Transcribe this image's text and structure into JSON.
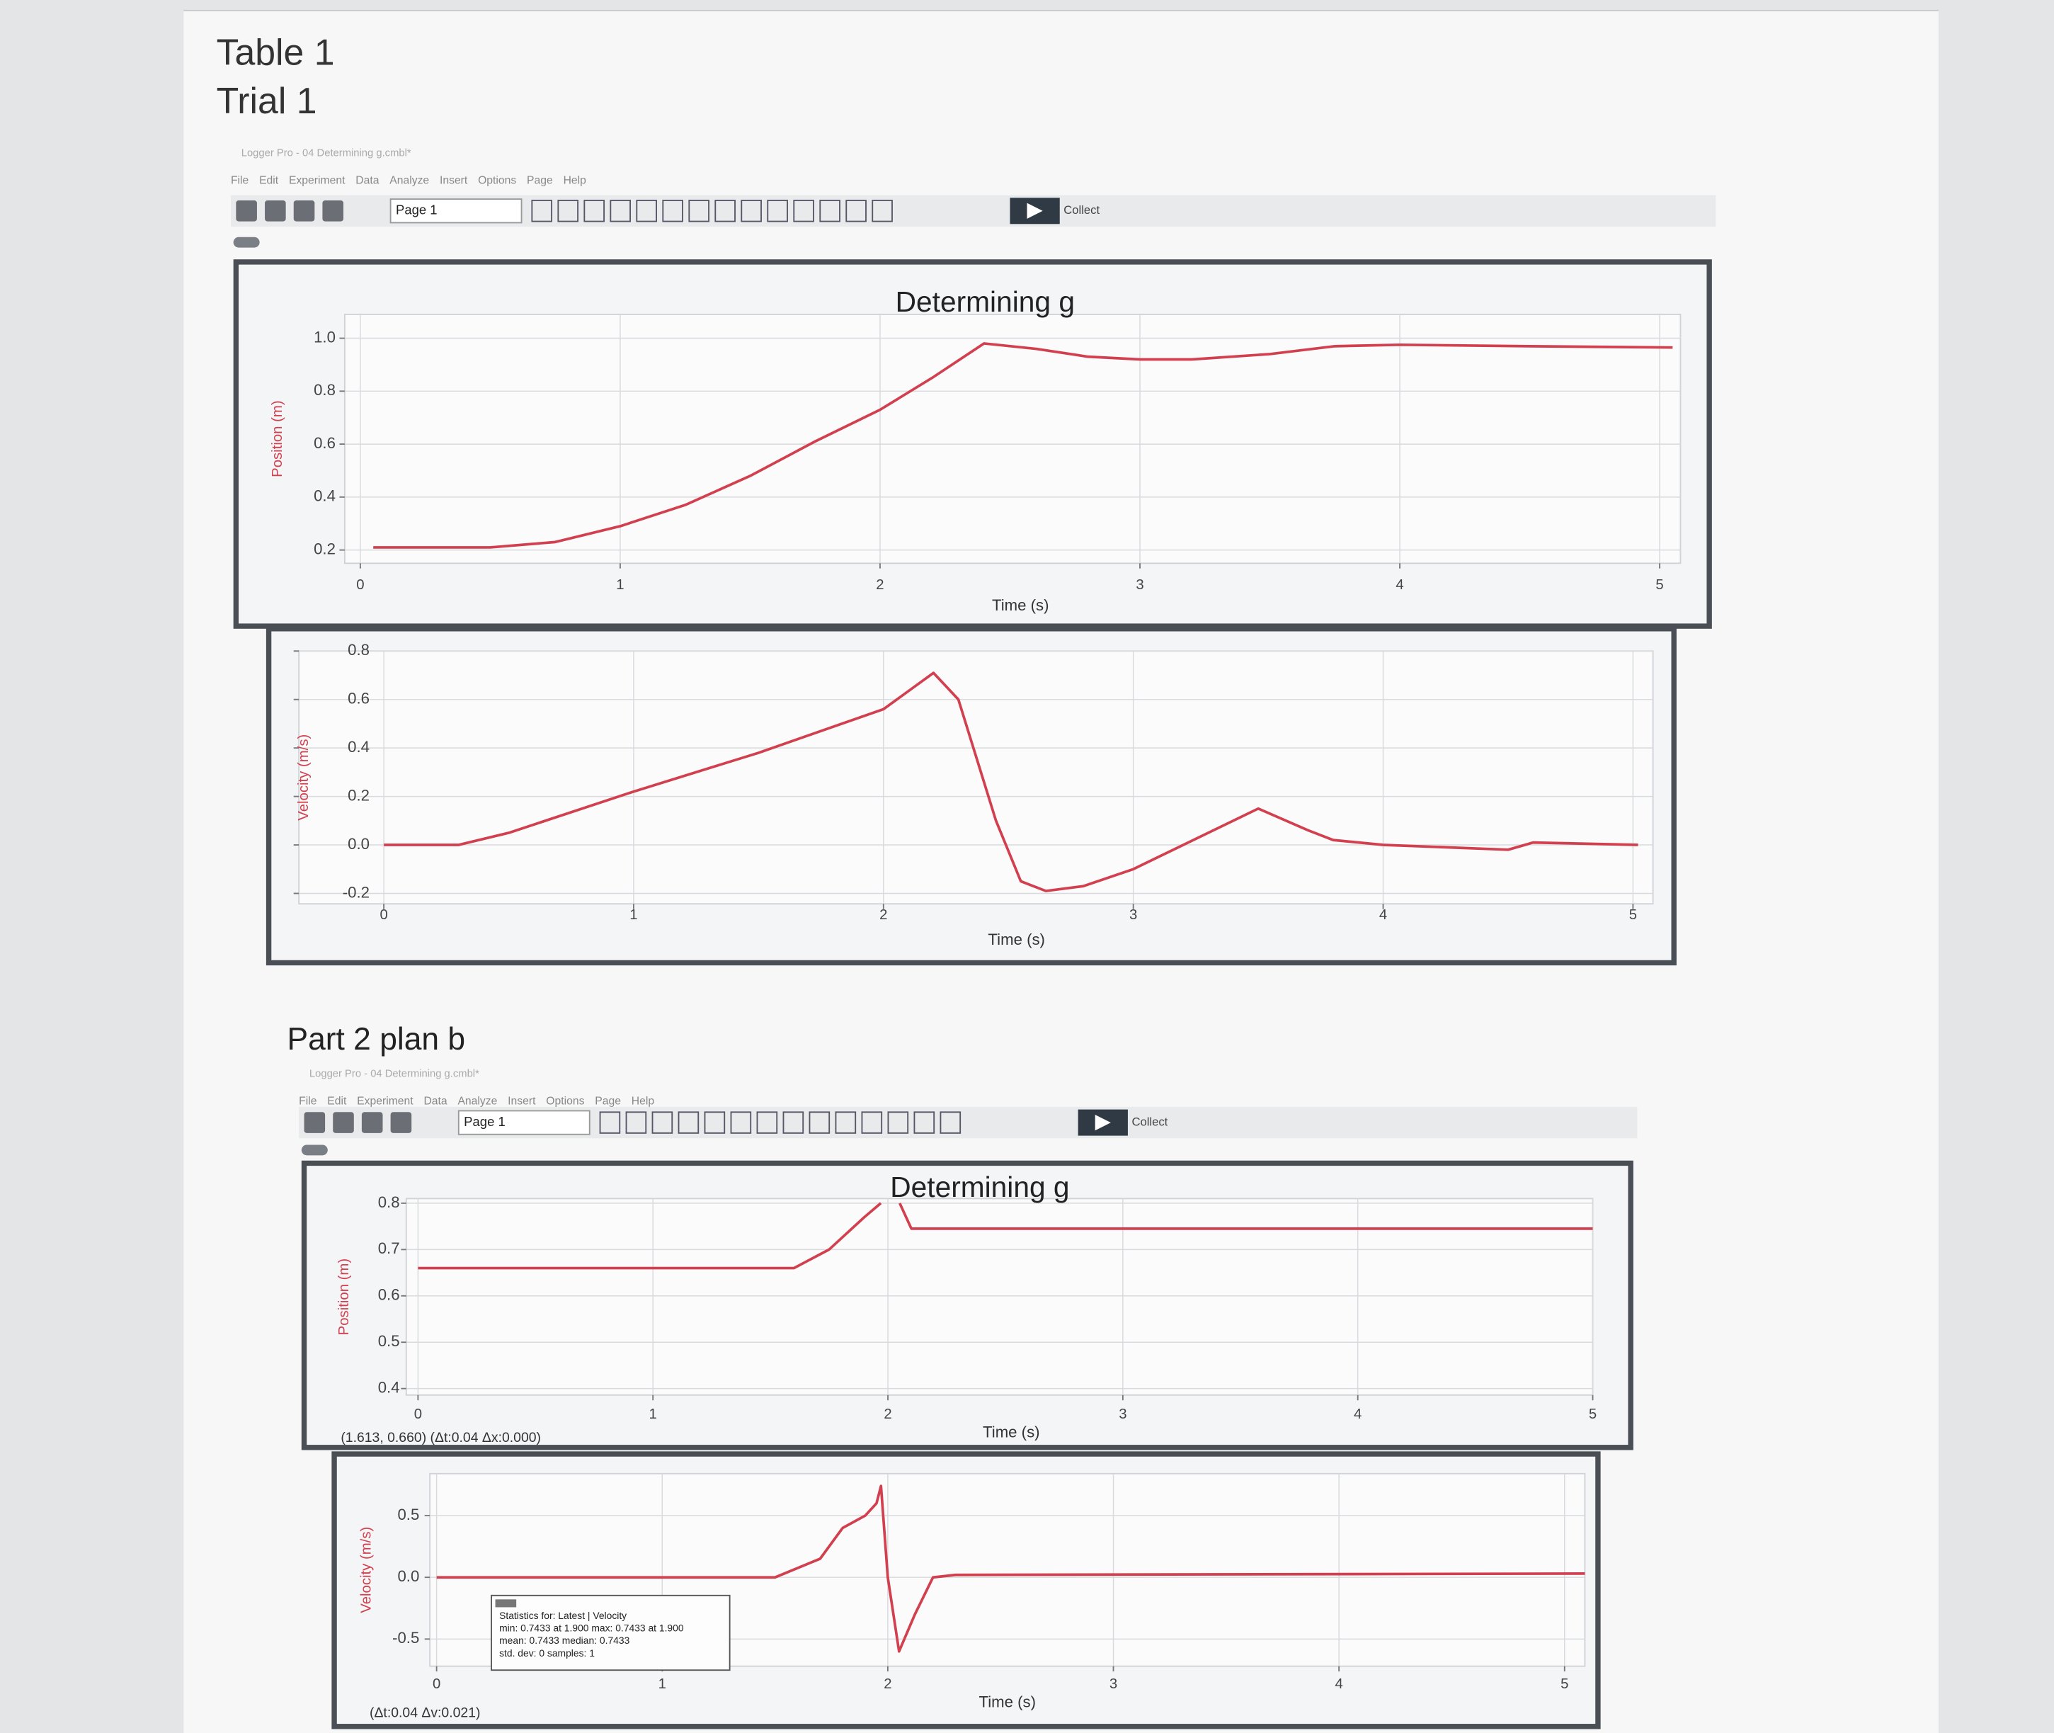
{
  "document": {
    "headings": [
      "Table 1",
      "Trial 1",
      "Part 2 plan b"
    ]
  },
  "windows": [
    {
      "title": "Logger Pro - 04 Determining g.cmbl*",
      "menu": [
        "File",
        "Edit",
        "Experiment",
        "Data",
        "Analyze",
        "Insert",
        "Options",
        "Page",
        "Help"
      ],
      "page": "Page 1",
      "collect": "Collect"
    },
    {
      "title": "Logger Pro - 04 Determining g.cmbl*",
      "menu": [
        "File",
        "Edit",
        "Experiment",
        "Data",
        "Analyze",
        "Insert",
        "Options",
        "Page",
        "Help"
      ],
      "page": "Page 1",
      "collect": "Collect"
    }
  ],
  "chart_data": [
    {
      "type": "line",
      "title": "Determining g",
      "x_label": "Time (s)",
      "y_label": "Position (m)",
      "grid": true,
      "xlim": [
        -0.06,
        5.08
      ],
      "ylim": [
        0.15,
        1.09
      ],
      "xticks": [
        0,
        1,
        2,
        3,
        4,
        5
      ],
      "yticks": [
        0.2,
        0.4,
        0.6,
        0.8,
        {
          "value": 1,
          "label": "1.0"
        }
      ],
      "x": [
        0.05,
        0.5,
        0.75,
        1.0,
        1.25,
        1.5,
        1.75,
        2.0,
        2.2,
        2.4,
        2.6,
        2.8,
        3.0,
        3.2,
        3.5,
        3.75,
        4.0,
        4.5,
        5.05
      ],
      "series": [
        {
          "name": "Position",
          "color": "#d2404f",
          "values": [
            0.21,
            0.21,
            0.23,
            0.29,
            0.37,
            0.48,
            0.61,
            0.73,
            0.85,
            0.98,
            0.96,
            0.93,
            0.92,
            0.92,
            0.94,
            0.97,
            0.975,
            0.97,
            0.965
          ]
        }
      ]
    },
    {
      "type": "line",
      "x_label": "Time (s)",
      "y_label": "Velocity (m/s)",
      "grid": true,
      "xlim": [
        -0.34,
        5.08
      ],
      "ylim": [
        -0.243,
        0.8
      ],
      "xticks": [
        0,
        1,
        2,
        3,
        4,
        5
      ],
      "yticks": [
        -0.2,
        {
          "value": 0,
          "label": "0.0"
        },
        0.2,
        0.4,
        0.6,
        0.8
      ],
      "x": [
        0,
        0.3,
        0.5,
        1.0,
        1.5,
        2.0,
        2.2,
        2.3,
        2.45,
        2.55,
        2.65,
        2.8,
        3.0,
        3.5,
        3.7,
        3.8,
        4.0,
        4.5,
        4.6,
        5.02
      ],
      "series": [
        {
          "name": "Velocity",
          "color": "#d2404f",
          "values": [
            0,
            0,
            0.05,
            0.22,
            0.38,
            0.56,
            0.71,
            0.6,
            0.1,
            -0.15,
            -0.19,
            -0.17,
            -0.1,
            0.15,
            0.06,
            0.02,
            0,
            -0.02,
            0.01,
            0
          ]
        }
      ]
    },
    {
      "type": "line",
      "title": "Determining g",
      "x_label": "Time (s)",
      "y_label": "Position (m)",
      "grid": true,
      "xlim": [
        -0.05,
        5.0
      ],
      "ylim": [
        0.386,
        0.81
      ],
      "xticks": [
        0,
        1,
        2,
        3,
        4,
        5
      ],
      "yticks": [
        0.4,
        0.5,
        0.6,
        0.7,
        0.8
      ],
      "x": [
        0,
        1.6,
        1.75,
        1.9,
        1.97,
        2.0,
        2.05,
        2.1,
        5.0
      ],
      "series": [
        {
          "name": "Position",
          "color": "#d2404f",
          "values": [
            0.66,
            0.66,
            0.7,
            0.77,
            0.8,
            null,
            0.8,
            0.745,
            0.745
          ]
        }
      ],
      "cursor_readout": "(1.613, 0.660) (Δt:0.04 Δx:0.000)"
    },
    {
      "type": "line",
      "x_label": "Time (s)",
      "y_label": "Velocity (m/s)",
      "grid": true,
      "xlim": [
        -0.03,
        5.09
      ],
      "ylim": [
        -0.72,
        0.84
      ],
      "xticks": [
        0,
        1,
        2,
        3,
        4,
        5
      ],
      "yticks": [
        -0.5,
        {
          "value": 0,
          "label": "0.0"
        },
        0.5
      ],
      "x": [
        0,
        1.5,
        1.7,
        1.8,
        1.9,
        1.95,
        1.97,
        2.0,
        2.05,
        2.12,
        2.2,
        2.3,
        5.09
      ],
      "series": [
        {
          "name": "Velocity",
          "color": "#d2404f",
          "values": [
            0,
            0,
            0.15,
            0.4,
            0.5,
            0.6,
            0.74,
            0,
            -0.6,
            -0.3,
            0,
            0.02,
            0.03
          ]
        }
      ],
      "cursor_readout": "(Δt:0.04 Δv:0.021)",
      "statistics": [
        "Statistics for: Latest | Velocity",
        "min: 0.7433 at 1.900 max: 0.7433 at 1.900",
        "mean: 0.7433 median: 0.7433",
        "std. dev: 0 samples: 1"
      ]
    }
  ]
}
